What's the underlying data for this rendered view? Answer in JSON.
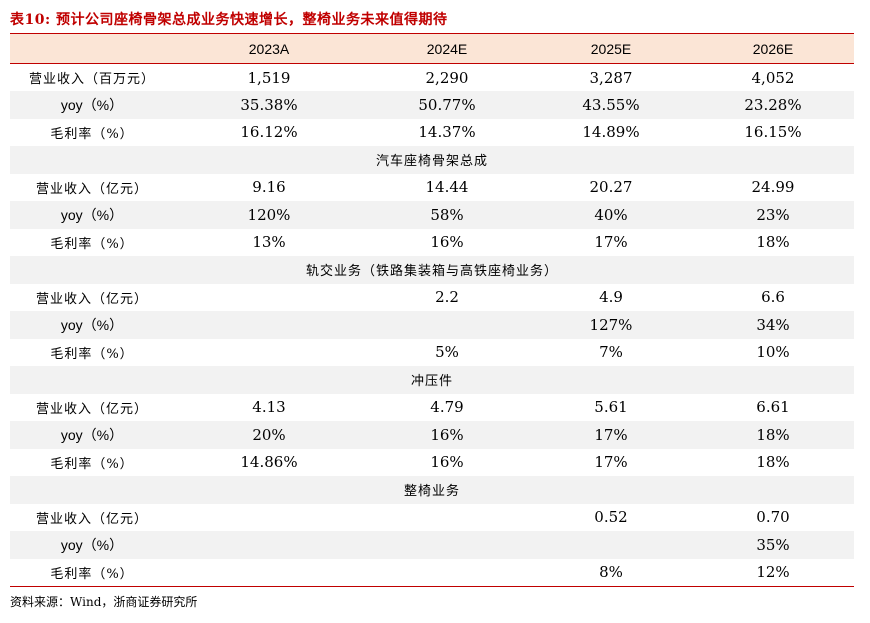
{
  "title": "表10:   预计公司座椅骨架总成业务快速增长，整椅业务未来值得期待",
  "header": [
    "",
    "2023A",
    "2024E",
    "2025E",
    "2026E"
  ],
  "rows": [
    {
      "type": "data",
      "cells": [
        "营业收入（百万元）",
        "1,519",
        "2,290",
        "3,287",
        "4,052"
      ]
    },
    {
      "type": "data",
      "cells": [
        "yoy（%）",
        "35.38%",
        "50.77%",
        "43.55%",
        "23.28%"
      ]
    },
    {
      "type": "data",
      "cells": [
        "毛利率（%）",
        "16.12%",
        "14.37%",
        "14.89%",
        "16.15%"
      ]
    },
    {
      "type": "section",
      "label": "汽车座椅骨架总成"
    },
    {
      "type": "data",
      "cells": [
        "营业收入（亿元）",
        "9.16",
        "14.44",
        "20.27",
        "24.99"
      ]
    },
    {
      "type": "data",
      "cells": [
        "yoy（%）",
        "120%",
        "58%",
        "40%",
        "23%"
      ]
    },
    {
      "type": "data",
      "cells": [
        "毛利率（%）",
        "13%",
        "16%",
        "17%",
        "18%"
      ]
    },
    {
      "type": "section",
      "label": "轨交业务（铁路集装箱与高铁座椅业务）"
    },
    {
      "type": "data",
      "cells": [
        "营业收入（亿元）",
        "",
        "2.2",
        "4.9",
        "6.6"
      ]
    },
    {
      "type": "data",
      "cells": [
        "yoy（%）",
        "",
        "",
        "127%",
        "34%"
      ]
    },
    {
      "type": "data",
      "cells": [
        "毛利率（%）",
        "",
        "5%",
        "7%",
        "10%"
      ]
    },
    {
      "type": "section",
      "label": "冲压件"
    },
    {
      "type": "data",
      "cells": [
        "营业收入（亿元）",
        "4.13",
        "4.79",
        "5.61",
        "6.61"
      ]
    },
    {
      "type": "data",
      "cells": [
        "yoy（%）",
        "20%",
        "16%",
        "17%",
        "18%"
      ]
    },
    {
      "type": "data",
      "cells": [
        "毛利率（%）",
        "14.86%",
        "16%",
        "17%",
        "18%"
      ]
    },
    {
      "type": "section",
      "label": "整椅业务"
    },
    {
      "type": "data",
      "cells": [
        "营业收入（亿元）",
        "",
        "",
        "0.52",
        "0.70"
      ]
    },
    {
      "type": "data",
      "cells": [
        "yoy（%）",
        "",
        "",
        "",
        "35%"
      ]
    },
    {
      "type": "data",
      "cells": [
        "毛利率（%）",
        "",
        "",
        "8%",
        "12%"
      ]
    }
  ],
  "source": "资料来源：Wind，浙商证券研究所"
}
